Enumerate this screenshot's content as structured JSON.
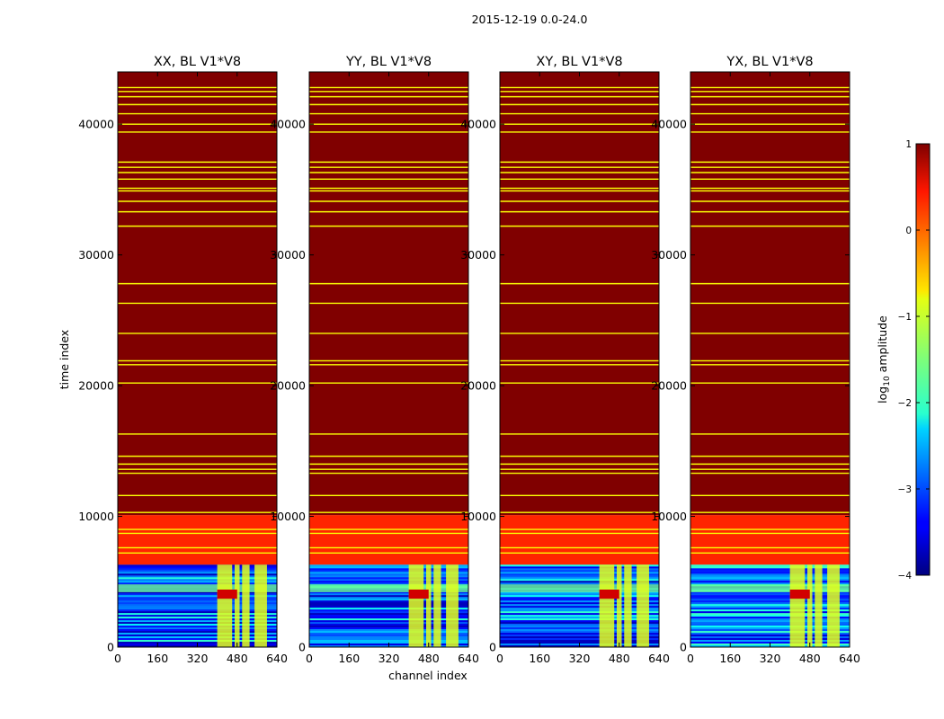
{
  "chart_data": {
    "type": "heatmap",
    "suptitle": "2015-12-19 0.0-24.0",
    "xlabel": "channel index",
    "ylabel": "time index",
    "xlim": [
      0,
      640
    ],
    "ylim": [
      0,
      44000
    ],
    "x_ticks": [
      "0",
      "160",
      "320",
      "480",
      "640"
    ],
    "y_ticks": [
      "0",
      "10000",
      "20000",
      "30000",
      "40000"
    ],
    "x_tick_values": [
      0,
      160,
      320,
      480,
      640
    ],
    "y_tick_values": [
      0,
      10000,
      20000,
      30000,
      40000
    ],
    "panels": [
      {
        "title": "XX, BL V1*V8"
      },
      {
        "title": "YY, BL V1*V8"
      },
      {
        "title": "XY, BL V1*V8"
      },
      {
        "title": "YX, BL V1*V8"
      }
    ],
    "bands": [
      {
        "from": 0,
        "to": 6300,
        "log_amplitude": -3.0,
        "description": "noisy low-amplitude visibilities"
      },
      {
        "from": 6300,
        "to": 10100,
        "log_amplitude": 0.2,
        "description": "uniform mid-amplitude"
      },
      {
        "from": 10100,
        "to": 44000,
        "log_amplitude": 1.0,
        "description": "saturated"
      }
    ],
    "horizontal_lines_time_index": [
      42800,
      42500,
      42100,
      41500,
      40800,
      40000,
      39400,
      37100,
      36700,
      36300,
      35800,
      35100,
      34900,
      34100,
      33300,
      32200,
      27800,
      26300,
      24000,
      21900,
      21600,
      20200,
      16300,
      14600,
      14000,
      13600,
      13300,
      11600,
      10300,
      9000,
      8700,
      7600,
      7200
    ],
    "high_channel_ranges": [
      [
        400,
        460
      ],
      [
        470,
        490
      ],
      [
        500,
        530
      ],
      [
        550,
        600
      ]
    ],
    "colorbar": {
      "label": "log10 amplitude",
      "label_main": "log",
      "label_sub": "10",
      "label_rest": " amplitude",
      "range": [
        -4,
        1
      ],
      "ticks": [
        "1",
        "0",
        "−1",
        "−2",
        "−3",
        "−4"
      ],
      "tick_values": [
        1,
        0,
        -1,
        -2,
        -3,
        -4
      ],
      "colormap": "jet"
    }
  }
}
